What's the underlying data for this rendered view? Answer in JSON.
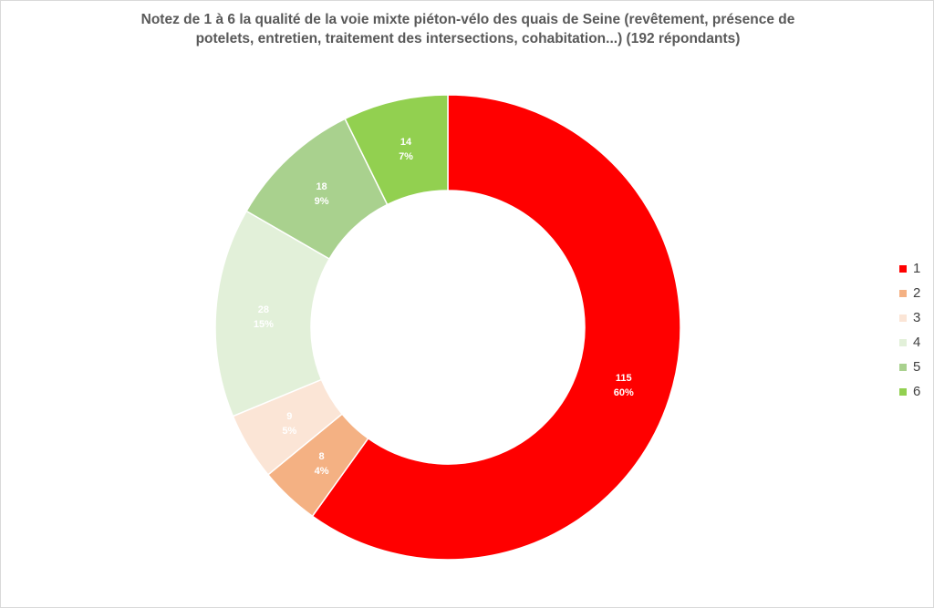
{
  "chart_data": {
    "type": "pie",
    "variant": "donut",
    "title": "Notez de 1 à 6 la qualité de la voie mixte piéton-vélo des quais de Seine (revêtement, présence de potelets, entretien, traitement des intersections, cohabitation...) (192 répondants)",
    "categories": [
      "1",
      "2",
      "3",
      "4",
      "5",
      "6"
    ],
    "values": [
      115,
      8,
      9,
      28,
      18,
      14
    ],
    "percent_labels": [
      "60%",
      "4%",
      "5%",
      "15%",
      "9%",
      "7%"
    ],
    "colors": [
      "#ff0000",
      "#f4b183",
      "#fbe5d6",
      "#e2f0d9",
      "#a9d18e",
      "#92d050"
    ],
    "label_colors": [
      "#ffffff",
      "#ffffff",
      "#ffffff",
      "#ffffff",
      "#ffffff",
      "#ffffff"
    ],
    "legend_position": "right",
    "start_angle_deg": 0,
    "direction": "clockwise"
  }
}
